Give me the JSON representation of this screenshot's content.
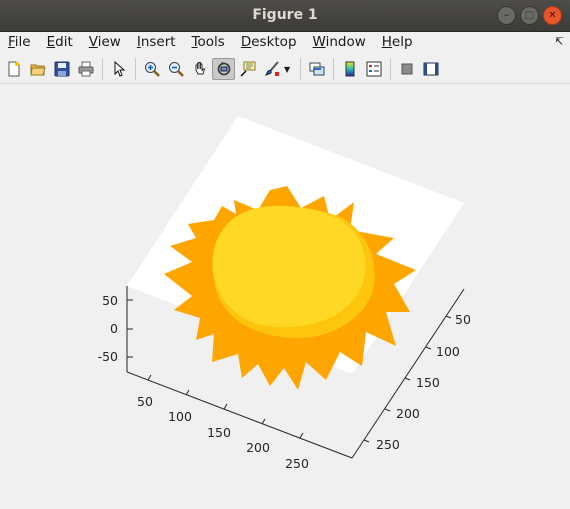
{
  "window": {
    "title": "Figure 1",
    "buttons": [
      "minimize-icon",
      "maximize-icon",
      "close-icon"
    ]
  },
  "menubar": {
    "items": [
      {
        "label": "File",
        "mnemonic": "F",
        "rest": "ile"
      },
      {
        "label": "Edit",
        "mnemonic": "E",
        "rest": "dit"
      },
      {
        "label": "View",
        "mnemonic": "V",
        "rest": "iew"
      },
      {
        "label": "Insert",
        "mnemonic": "I",
        "rest": "nsert"
      },
      {
        "label": "Tools",
        "mnemonic": "T",
        "rest": "ools"
      },
      {
        "label": "Desktop",
        "mnemonic": "D",
        "rest": "esktop"
      },
      {
        "label": "Window",
        "mnemonic": "W",
        "rest": "indow"
      },
      {
        "label": "Help",
        "mnemonic": "H",
        "rest": "elp"
      }
    ],
    "dock_icon": "dock-arrow-icon"
  },
  "toolbar": {
    "buttons": [
      "new-figure-icon",
      "open-file-icon",
      "save-icon",
      "print-icon",
      "edit-plot-arrow-icon",
      "zoom-in-icon",
      "zoom-out-icon",
      "pan-hand-icon",
      "rotate-3d-icon",
      "data-cursor-icon",
      "brush-icon",
      "link-plot-icon",
      "colorbar-icon",
      "legend-icon",
      "hide-plot-tools-icon",
      "show-plot-tools-icon"
    ],
    "active": "rotate-3d-icon"
  },
  "plot": {
    "z_ticks": [
      "50",
      "0",
      "-50"
    ],
    "x_ticks": [
      "50",
      "100",
      "150",
      "200",
      "250"
    ],
    "y_ticks": [
      "50",
      "100",
      "150",
      "200",
      "250"
    ],
    "colors": {
      "outer": "#ffa500",
      "middle": "#fdc50b",
      "inner": "#fed824",
      "background": "#ffffff",
      "axis": "#262626"
    }
  }
}
